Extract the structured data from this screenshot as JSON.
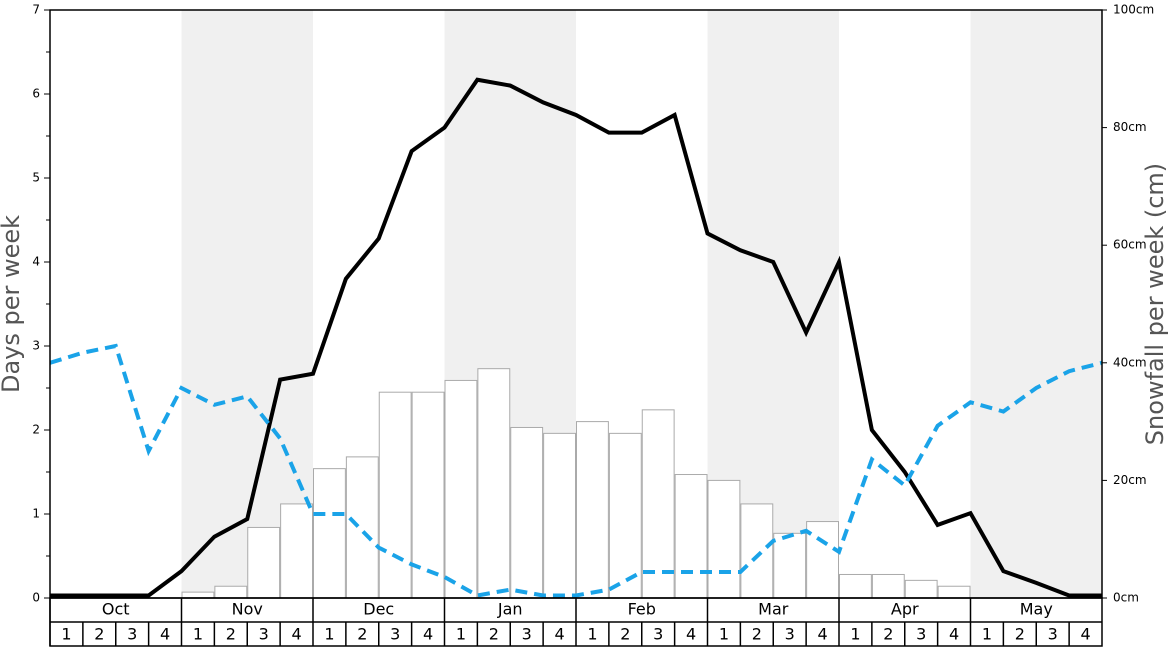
{
  "chart_data": {
    "type": "bar-line",
    "ylabel": "Days per week",
    "y2label": "Snowfall per week (cm)",
    "months": [
      "Oct",
      "Nov",
      "Dec",
      "Jan",
      "Feb",
      "Mar",
      "Apr",
      "May"
    ],
    "categories": [
      "1",
      "2",
      "3",
      "4",
      "1",
      "2",
      "3",
      "4",
      "1",
      "2",
      "3",
      "4",
      "1",
      "2",
      "3",
      "4",
      "1",
      "2",
      "3",
      "4",
      "1",
      "2",
      "3",
      "4",
      "1",
      "2",
      "3",
      "4",
      "1",
      "2",
      "3",
      "4"
    ],
    "ylim": [
      0,
      7
    ],
    "yticks": [
      0,
      1,
      2,
      3,
      4,
      5,
      6,
      7
    ],
    "y2lim": [
      0,
      100
    ],
    "y2ticks": [
      {
        "value": 0,
        "label": "0cm"
      },
      {
        "value": 20,
        "label": "20cm"
      },
      {
        "value": 40,
        "label": "40cm"
      },
      {
        "value": 60,
        "label": "60cm"
      },
      {
        "value": 80,
        "label": "80cm"
      },
      {
        "value": 100,
        "label": "100cm"
      }
    ],
    "xlim": [
      0,
      32
    ],
    "x": [
      0,
      1,
      2,
      3,
      4,
      5,
      6,
      7,
      8,
      9,
      10,
      11,
      12,
      13,
      14,
      15,
      16,
      17,
      18,
      19,
      20,
      21,
      22,
      23,
      24,
      25,
      26,
      27,
      28,
      29,
      30,
      31,
      32
    ],
    "bars": {
      "axis": "y2",
      "color": "#ffffff",
      "edgecolor": "#aaaaaa",
      "values": [
        0,
        0,
        0,
        0,
        1,
        2,
        12,
        16,
        22,
        24,
        35,
        35,
        37,
        39,
        29,
        28,
        30,
        28,
        32,
        21,
        20,
        16,
        11,
        13,
        4,
        4,
        3,
        2,
        0,
        0,
        0,
        0
      ]
    },
    "series": [
      {
        "color": "#000000",
        "dashed": false,
        "values": [
          0.03,
          0.03,
          0.03,
          0.03,
          0.32,
          0.73,
          0.94,
          2.6,
          2.67,
          3.8,
          4.28,
          5.32,
          5.6,
          6.17,
          6.1,
          5.9,
          5.75,
          5.54,
          5.54,
          5.75,
          4.34,
          4.14,
          4.0,
          3.16,
          4.0,
          2.0,
          1.5,
          0.87,
          1.01,
          0.32,
          0.18,
          0.03,
          0.03
        ]
      },
      {
        "color": "#1aa3e8",
        "dashed": true,
        "values": [
          2.8,
          2.92,
          3.0,
          1.75,
          2.5,
          2.3,
          2.4,
          1.9,
          1.0,
          1.0,
          0.6,
          0.4,
          0.25,
          0.03,
          0.1,
          0.03,
          0.03,
          0.1,
          0.31,
          0.31,
          0.31,
          0.31,
          0.68,
          0.8,
          0.55,
          1.65,
          1.34,
          2.05,
          2.33,
          2.22,
          2.5,
          2.7,
          2.8
        ]
      }
    ]
  }
}
